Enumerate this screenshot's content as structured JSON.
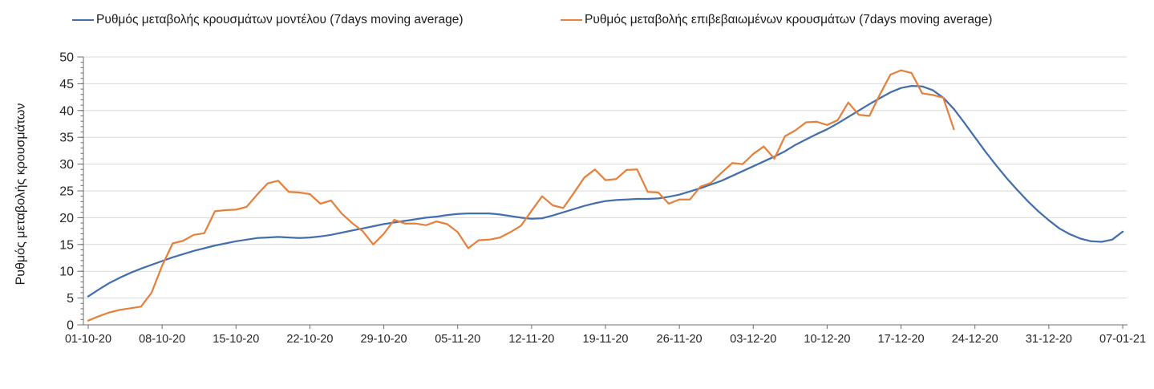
{
  "chart": {
    "y_axis_title": "Ρυθμός μεταβολής κρουσμάτων",
    "colors": {
      "background": "#ffffff",
      "gridline": "#d9d9d9",
      "axis": "#6e6e6e",
      "tick": "#6e6e6e",
      "text": "#262626"
    }
  },
  "chart_data": {
    "type": "line",
    "title": "",
    "xlabel": "",
    "ylabel": "Ρυθμός μεταβολής κρουσμάτων",
    "ylim": [
      0,
      50
    ],
    "y_tick_step": 5,
    "y_minor_tick_step": 1,
    "y_tick_labels": [
      "0",
      "5",
      "10",
      "15",
      "20",
      "25",
      "30",
      "35",
      "40",
      "45",
      "50"
    ],
    "grid": "horizontal-only",
    "legend_position": "top",
    "x_tick_labels": [
      "01-10-20",
      "08-10-20",
      "15-10-20",
      "22-10-20",
      "29-10-20",
      "05-11-20",
      "12-11-20",
      "19-11-20",
      "26-11-20",
      "03-12-20",
      "10-12-20",
      "17-12-20",
      "24-12-20",
      "31-12-20",
      "07-01-21"
    ],
    "x_unit": "days",
    "days_per_tick": 7,
    "series": [
      {
        "name": "Ρυθμός μεταβολής κρουσμάτων μοντέλου (7days moving average)",
        "color": "#446fad",
        "start_day": 0,
        "values": [
          5.3,
          6.6,
          7.8,
          8.8,
          9.7,
          10.5,
          11.2,
          11.9,
          12.6,
          13.2,
          13.8,
          14.3,
          14.8,
          15.2,
          15.6,
          15.9,
          16.2,
          16.3,
          16.4,
          16.3,
          16.2,
          16.3,
          16.5,
          16.8,
          17.2,
          17.6,
          18,
          18.4,
          18.8,
          19.1,
          19.4,
          19.7,
          20,
          20.2,
          20.5,
          20.7,
          20.8,
          20.8,
          20.8,
          20.6,
          20.3,
          20,
          19.8,
          19.9,
          20.4,
          21,
          21.6,
          22.2,
          22.7,
          23.1,
          23.3,
          23.4,
          23.5,
          23.5,
          23.6,
          23.9,
          24.3,
          24.9,
          25.5,
          26.2,
          26.9,
          27.8,
          28.7,
          29.6,
          30.5,
          31.4,
          32.4,
          33.6,
          34.6,
          35.6,
          36.5,
          37.6,
          38.8,
          40,
          41.2,
          42.3,
          43.4,
          44.2,
          44.6,
          44.5,
          43.8,
          42.4,
          40.3,
          37.7,
          35,
          32.3,
          29.8,
          27.4,
          25.2,
          23.1,
          21.2,
          19.5,
          18,
          16.9,
          16.1,
          15.6,
          15.5,
          15.9,
          17.4
        ]
      },
      {
        "name": "Ρυθμός μεταβολής επιβεβαιωμένων κρουσμάτων (7days moving average)",
        "color": "#e5813d",
        "start_day": 0,
        "values": [
          0.8,
          1.6,
          2.3,
          2.8,
          3.1,
          3.4,
          6,
          11,
          15.2,
          15.7,
          16.8,
          17.1,
          21.2,
          21.4,
          21.5,
          22,
          24.3,
          26.4,
          26.9,
          24.8,
          24.7,
          24.4,
          22.6,
          23.2,
          20.8,
          19,
          17.5,
          15,
          17,
          19.6,
          18.9,
          18.9,
          18.6,
          19.3,
          18.8,
          17.3,
          14.3,
          15.8,
          15.9,
          16.3,
          17.3,
          18.5,
          21.3,
          24,
          22.3,
          21.8,
          24.6,
          27.5,
          29,
          27,
          27.2,
          28.9,
          29,
          24.8,
          24.7,
          22.6,
          23.4,
          23.4,
          25.8,
          26.5,
          28.4,
          30.2,
          30,
          31.9,
          33.3,
          31,
          35.2,
          36.3,
          37.8,
          37.9,
          37.3,
          38.2,
          41.5,
          39.2,
          39,
          43,
          46.7,
          47.5,
          47,
          43.2,
          42.9,
          42.4,
          36.5
        ]
      }
    ]
  }
}
